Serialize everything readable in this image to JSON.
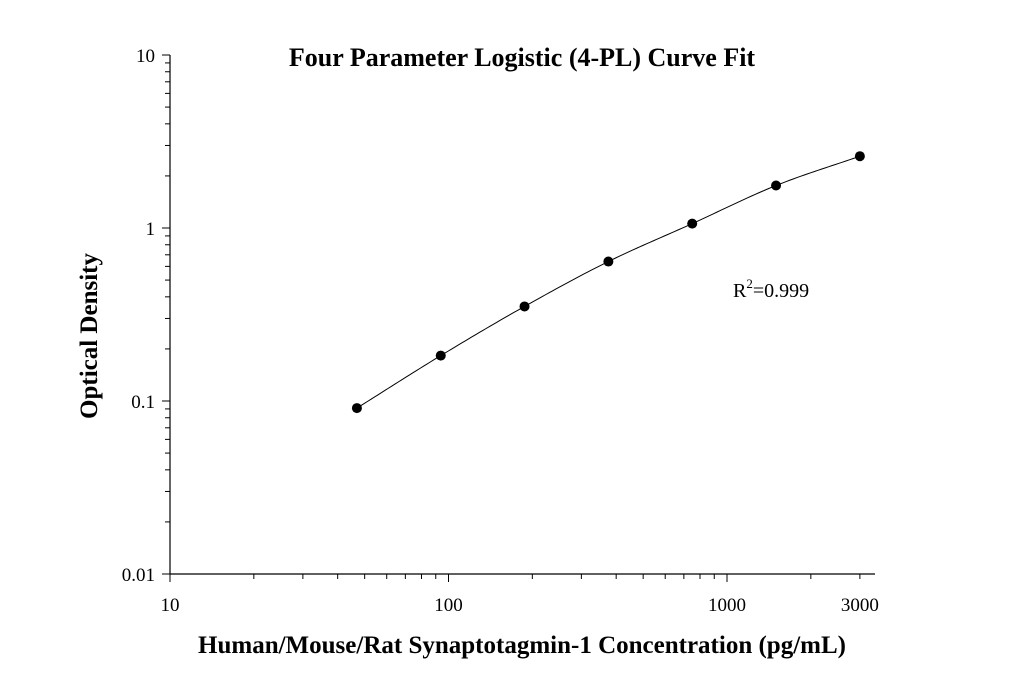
{
  "chart_data": {
    "type": "scatter",
    "title": "Four Parameter Logistic (4-PL) Curve Fit",
    "xlabel": "Human/Mouse/Rat Synaptotagmin-1 Concentration (pg/mL)",
    "ylabel": "Optical Density",
    "x_scale": "log",
    "y_scale": "log",
    "xlim": [
      10,
      3000
    ],
    "ylim": [
      0.01,
      10
    ],
    "x_ticks": [
      {
        "value": 10,
        "label": "10"
      },
      {
        "value": 100,
        "label": "100"
      },
      {
        "value": 1000,
        "label": "1000"
      },
      {
        "value": 3000,
        "label": "3000"
      }
    ],
    "y_ticks": [
      {
        "value": 0.01,
        "label": "0.01"
      },
      {
        "value": 0.1,
        "label": "0.1"
      },
      {
        "value": 1,
        "label": "1"
      },
      {
        "value": 10,
        "label": "10"
      }
    ],
    "series": [
      {
        "points": [
          {
            "x": 46.9,
            "y": 0.091
          },
          {
            "x": 93.8,
            "y": 0.183
          },
          {
            "x": 187.5,
            "y": 0.352
          },
          {
            "x": 375,
            "y": 0.64
          },
          {
            "x": 750,
            "y": 1.06
          },
          {
            "x": 1500,
            "y": 1.76
          },
          {
            "x": 3000,
            "y": 2.6
          }
        ],
        "fit": "4-PL",
        "marker_color": "#000000",
        "line_color": "#000000"
      }
    ],
    "annotation": {
      "base": "R",
      "superscript": "2",
      "text": "=0.999"
    },
    "grid": false,
    "legend": "none"
  }
}
